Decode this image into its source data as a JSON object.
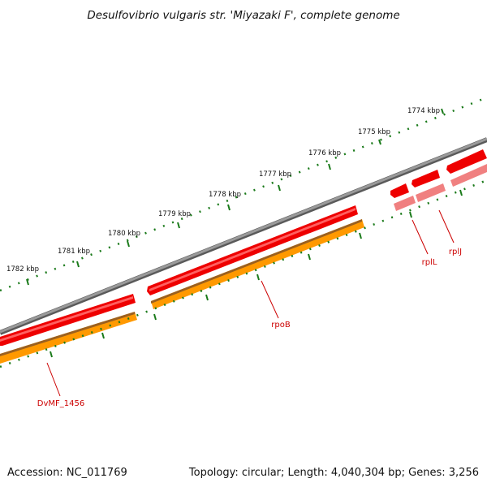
{
  "title": "Desulfovibrio vulgaris str. 'Miyazaki F', complete genome",
  "footer": {
    "accession": "Accession: NC_011769",
    "summary": "Topology: circular; Length: 4,040,304 bp; Genes: 3,256"
  },
  "scale_ticks": [
    "1774 kbp",
    "1775 kbp",
    "1776 kbp",
    "1777 kbp",
    "1778 kbp",
    "1779 kbp",
    "1780 kbp",
    "1781 kbp",
    "1782 kbp"
  ],
  "gene_labels": {
    "rpoB": "rpoB",
    "rplL": "rplL",
    "rplJ": "rplJ",
    "dvmf": "DvMF_1456"
  },
  "colors": {
    "backbone": "#808080",
    "gene_forward": "#ee0000",
    "gene_forward_light": "#f08080",
    "cds_orange": "#ff9900",
    "tick_green": "#1a7a1a",
    "label_red": "#cc0000"
  }
}
